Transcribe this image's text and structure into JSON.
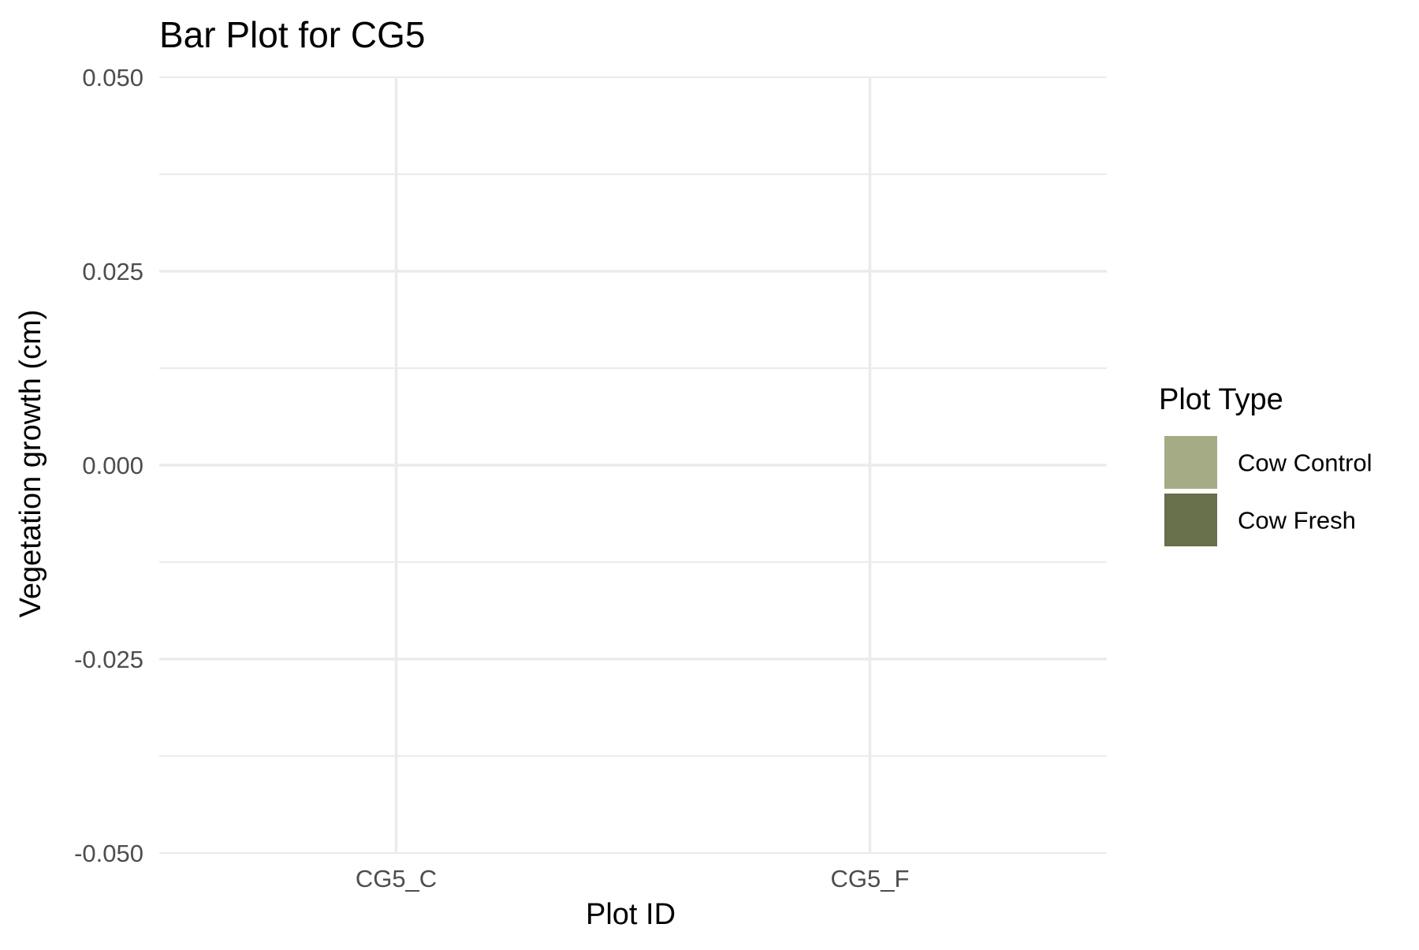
{
  "chart_data": {
    "type": "bar",
    "title": "Bar Plot for CG5",
    "xlabel": "Plot ID",
    "ylabel": "Vegetation growth (cm)",
    "categories": [
      "CG5_C",
      "CG5_F"
    ],
    "series": [
      {
        "name": "Cow Control",
        "values": [
          null,
          null
        ],
        "color": "#a5ab84"
      },
      {
        "name": "Cow Fresh",
        "values": [
          null,
          null
        ],
        "color": "#67704b"
      }
    ],
    "ylim": [
      -0.05,
      0.05
    ],
    "yticks": [
      -0.05,
      -0.025,
      0.0,
      0.025,
      0.05
    ],
    "ytick_labels": [
      "-0.050",
      "-0.025",
      "0.000",
      "0.025",
      "0.050"
    ],
    "grid": true,
    "legend": {
      "title": "Plot Type",
      "placement": "right",
      "entries": [
        {
          "label": "Cow Control",
          "color": "#a5ab84"
        },
        {
          "label": "Cow Fresh",
          "color": "#67704b"
        }
      ]
    }
  }
}
